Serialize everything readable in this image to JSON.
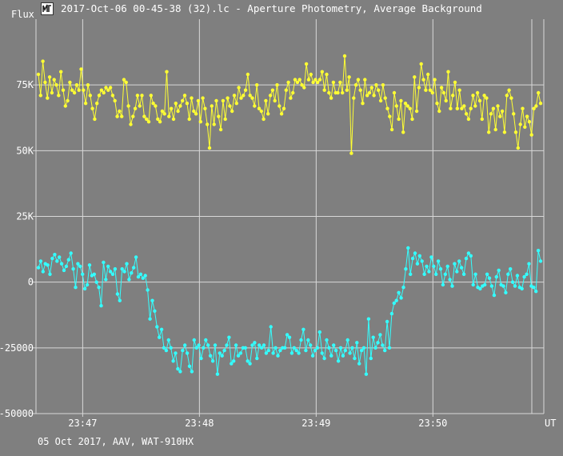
{
  "window": {
    "title": "2017-Oct-06 00-45-38 (32).lc - Aperture Photometry, Average Background",
    "icon": "lightcurve-app-icon"
  },
  "labels": {
    "y_axis": "Flux",
    "x_axis": "UT",
    "footer": "05 Oct 2017, AAV, WAT-910HX"
  },
  "colors": {
    "background": "#7f7f7f",
    "grid": "#d8d8d8",
    "series_target": "#ffff33",
    "series_comparison": "#33ffff"
  },
  "chart_data": {
    "type": "line",
    "title": "2017-Oct-06 00-45-38 (32).lc - Aperture Photometry, Average Background",
    "xlabel": "UT",
    "ylabel": "Flux",
    "ylim": [
      -50000,
      100000
    ],
    "xlim": [
      "23:46:36",
      "23:50:57"
    ],
    "y_ticks": [
      "75K",
      "50K",
      "25K",
      "0",
      "-25000",
      "-50000"
    ],
    "y_tick_values": [
      75000,
      50000,
      25000,
      0,
      -25000,
      -50000
    ],
    "x_ticks": [
      "23:47",
      "23:48",
      "23:49",
      "23:50"
    ],
    "x_tick_values": [
      "23:47:00",
      "23:48:00",
      "23:49:00",
      "23:50:00"
    ],
    "grid": true,
    "legend": "none",
    "series": [
      {
        "color": "#ffff33",
        "values": [
          79000,
          71000,
          84000,
          76000,
          70000,
          78000,
          72000,
          77000,
          75000,
          71000,
          80000,
          73000,
          67000,
          69000,
          76000,
          73000,
          72000,
          75000,
          73000,
          81000,
          73000,
          68000,
          75000,
          71000,
          66000,
          62000,
          68000,
          71000,
          73000,
          72000,
          74000,
          73000,
          74000,
          71000,
          69000,
          63000,
          65000,
          63000,
          77000,
          76000,
          67000,
          60000,
          63000,
          66000,
          71000,
          67000,
          71000,
          63000,
          62000,
          61000,
          71000,
          68000,
          67000,
          62000,
          61000,
          65000,
          64000,
          80000,
          63000,
          66000,
          62000,
          68000,
          65000,
          67000,
          69000,
          71000,
          68000,
          62000,
          70000,
          65000,
          64000,
          69000,
          61000,
          70000,
          66000,
          60000,
          51000,
          67000,
          60000,
          69000,
          63000,
          58000,
          69000,
          62000,
          70000,
          67000,
          65000,
          71000,
          68000,
          74000,
          70000,
          71000,
          73000,
          79000,
          71000,
          70000,
          67000,
          75000,
          66000,
          65000,
          62000,
          69000,
          64000,
          71000,
          73000,
          69000,
          75000,
          67000,
          64000,
          66000,
          73000,
          76000,
          70000,
          72000,
          77000,
          76000,
          77000,
          75000,
          74000,
          83000,
          77000,
          79000,
          76000,
          77000,
          76000,
          77000,
          80000,
          73000,
          79000,
          72000,
          70000,
          76000,
          72000,
          72000,
          76000,
          72000,
          86000,
          73000,
          78000,
          49000,
          70000,
          75000,
          77000,
          73000,
          68000,
          77000,
          71000,
          72000,
          74000,
          71000,
          75000,
          73000,
          69000,
          75000,
          70000,
          66000,
          63000,
          58000,
          72000,
          67000,
          62000,
          69000,
          57000,
          68000,
          67000,
          66000,
          62000,
          78000,
          65000,
          74000,
          83000,
          77000,
          73000,
          79000,
          73000,
          72000,
          77000,
          68000,
          65000,
          74000,
          72000,
          69000,
          80000,
          66000,
          71000,
          76000,
          66000,
          73000,
          66000,
          67000,
          64000,
          62000,
          66000,
          71000,
          67000,
          72000,
          69000,
          62000,
          71000,
          70000,
          57000,
          64000,
          66000,
          58000,
          67000,
          63000,
          65000,
          57000,
          71000,
          73000,
          70000,
          64000,
          57000,
          51000,
          60000,
          66000,
          59000,
          63000,
          61000,
          56000,
          66000,
          67000,
          72000,
          68000
        ]
      },
      {
        "color": "#33ffff",
        "values": [
          5500,
          8000,
          4000,
          7000,
          6500,
          3000,
          9000,
          10500,
          8000,
          9500,
          7000,
          4500,
          6000,
          8500,
          11000,
          5000,
          -2000,
          7000,
          6000,
          3000,
          -2500,
          -1000,
          6500,
          2500,
          3000,
          0,
          -2000,
          -9000,
          7500,
          1000,
          6000,
          4000,
          3000,
          5000,
          -4500,
          -7000,
          5000,
          4000,
          7000,
          1000,
          3500,
          5500,
          9500,
          2000,
          3000,
          1500,
          2500,
          -3000,
          -14000,
          -7000,
          -11000,
          -17000,
          -21000,
          -18000,
          -25000,
          -26000,
          -22000,
          -25000,
          -30000,
          -27000,
          -33000,
          -34000,
          -26000,
          -24000,
          -27000,
          -32000,
          -34000,
          -22000,
          -25000,
          -24000,
          -29000,
          -25000,
          -22000,
          -24000,
          -28000,
          -30000,
          -24000,
          -35000,
          -27000,
          -28000,
          -26000,
          -24000,
          -21000,
          -31000,
          -30000,
          -24000,
          -28000,
          -27000,
          -25000,
          -25000,
          -30000,
          -31000,
          -24000,
          -23000,
          -29000,
          -24000,
          -25000,
          -24000,
          -27000,
          -26000,
          -17000,
          -27000,
          -25000,
          -28000,
          -26000,
          -25000,
          -25000,
          -20000,
          -21000,
          -27000,
          -25000,
          -26000,
          -27000,
          -22000,
          -18000,
          -26000,
          -22000,
          -24000,
          -28000,
          -26000,
          -25000,
          -19000,
          -27000,
          -29000,
          -22000,
          -25000,
          -28000,
          -24000,
          -26000,
          -30000,
          -25000,
          -28000,
          -26000,
          -22000,
          -27000,
          -25000,
          -29000,
          -23000,
          -31000,
          -26000,
          -25000,
          -35000,
          -14000,
          -29000,
          -21000,
          -25000,
          -23000,
          -20000,
          -24000,
          -26000,
          -15000,
          -25000,
          -12000,
          -8000,
          -7000,
          -4000,
          -6000,
          -2000,
          5000,
          13000,
          3000,
          9000,
          11000,
          7000,
          10000,
          8000,
          3000,
          6000,
          4000,
          9500,
          6000,
          3000,
          8000,
          5000,
          -1000,
          3000,
          6000,
          1000,
          -1500,
          7000,
          4000,
          8000,
          5500,
          3000,
          9000,
          11000,
          10000,
          -1000,
          3000,
          -2000,
          -2500,
          -1500,
          -1000,
          3000,
          1500,
          -1500,
          -5000,
          2000,
          4500,
          -1000,
          -1500,
          -4000,
          3000,
          5000,
          0,
          -1500,
          2500,
          -2000,
          -2500,
          2000,
          3000,
          7000,
          -1500,
          -2000,
          -3500,
          12000,
          8000
        ]
      }
    ]
  }
}
